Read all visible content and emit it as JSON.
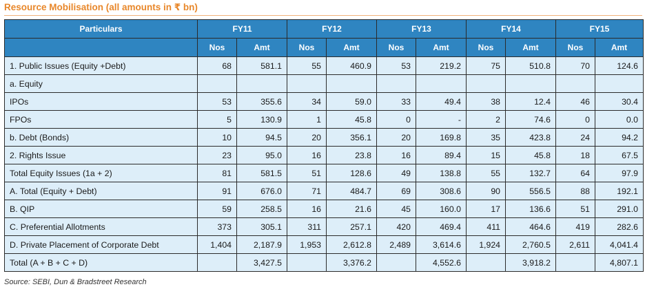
{
  "title": "Resource Mobilisation (all amounts in ₹ bn)",
  "headers": {
    "particulars": "Particulars",
    "years": [
      "FY11",
      "FY12",
      "FY13",
      "FY14",
      "FY15"
    ],
    "nos": "Nos",
    "amt": "Amt"
  },
  "rows": [
    {
      "label": "1. Public Issues (Equity +Debt)",
      "cells": [
        "68",
        "581.1",
        "55",
        "460.9",
        "53",
        "219.2",
        "75",
        "510.8",
        "70",
        "124.6"
      ]
    },
    {
      "label": "a. Equity",
      "cells": [
        "",
        "",
        "",
        "",
        "",
        "",
        "",
        "",
        "",
        ""
      ]
    },
    {
      "label": "IPOs",
      "cells": [
        "53",
        "355.6",
        "34",
        "59.0",
        "33",
        "49.4",
        "38",
        "12.4",
        "46",
        "30.4"
      ]
    },
    {
      "label": "FPOs",
      "cells": [
        "5",
        "130.9",
        "1",
        "45.8",
        "0",
        "-",
        "2",
        "74.6",
        "0",
        "0.0"
      ]
    },
    {
      "label": "b. Debt (Bonds)",
      "cells": [
        "10",
        "94.5",
        "20",
        "356.1",
        "20",
        "169.8",
        "35",
        "423.8",
        "24",
        "94.2"
      ]
    },
    {
      "label": "2. Rights Issue",
      "cells": [
        "23",
        "95.0",
        "16",
        "23.8",
        "16",
        "89.4",
        "15",
        "45.8",
        "18",
        "67.5"
      ]
    },
    {
      "label": "Total Equity Issues (1a + 2)",
      "cells": [
        "81",
        "581.5",
        "51",
        "128.6",
        "49",
        "138.8",
        "55",
        "132.7",
        "64",
        "97.9"
      ]
    },
    {
      "label": "A. Total (Equity + Debt)",
      "cells": [
        "91",
        "676.0",
        "71",
        "484.7",
        "69",
        "308.6",
        "90",
        "556.5",
        "88",
        "192.1"
      ]
    },
    {
      "label": "B. QIP",
      "cells": [
        "59",
        "258.5",
        "16",
        "21.6",
        "45",
        "160.0",
        "17",
        "136.6",
        "51",
        "291.0"
      ]
    },
    {
      "label": "C. Preferential Allotments",
      "cells": [
        "373",
        "305.1",
        "311",
        "257.1",
        "420",
        "469.4",
        "411",
        "464.6",
        "419",
        "282.6"
      ]
    },
    {
      "label": "D. Private Placement of Corporate Debt",
      "cells": [
        "1,404",
        "2,187.9",
        "1,953",
        "2,612.8",
        "2,489",
        "3,614.6",
        "1,924",
        "2,760.5",
        "2,611",
        "4,041.4"
      ]
    },
    {
      "label": "Total (A + B + C + D)",
      "cells": [
        "",
        "3,427.5",
        "",
        "3,376.2",
        "",
        "4,552.6",
        "",
        "3,918.2",
        "",
        "4,807.1"
      ]
    }
  ],
  "source": "Source: SEBI, Dun & Bradstreet Research"
}
